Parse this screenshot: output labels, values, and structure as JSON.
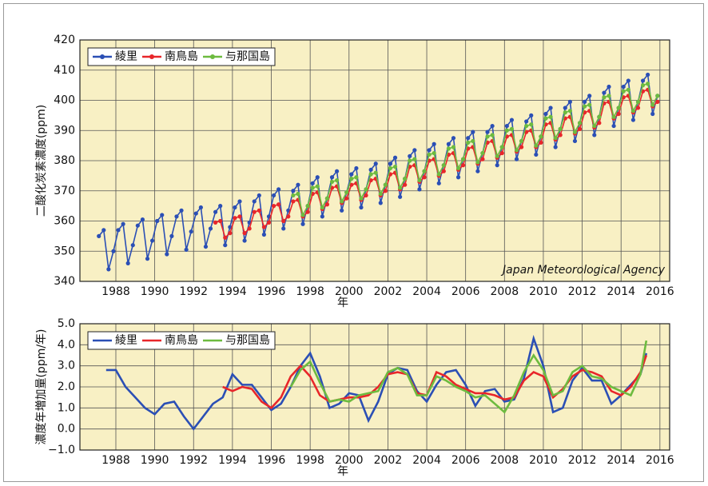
{
  "chart_data": [
    {
      "type": "line",
      "ylabel": "二酸化炭素濃度(ppm)",
      "xlabel": "年",
      "annotation": "Japan Meteorological Agency",
      "xlim": [
        1986.15,
        2016.5
      ],
      "xticks": [
        1988,
        1990,
        1992,
        1994,
        1996,
        1998,
        2000,
        2002,
        2004,
        2006,
        2008,
        2010,
        2012,
        2014,
        2016
      ],
      "ylim": [
        340,
        420
      ],
      "yticks": [
        340,
        350,
        360,
        370,
        380,
        390,
        400,
        410,
        420
      ],
      "grid": true,
      "markers": true,
      "legend": "top-left",
      "series": [
        {
          "name": "綾里",
          "color": "#2b4fb5",
          "x": [
            1987.125,
            1987.375,
            1987.625,
            1987.875,
            1988.125,
            1988.375,
            1988.625,
            1988.875,
            1989.125,
            1989.375,
            1989.625,
            1989.875,
            1990.125,
            1990.375,
            1990.625,
            1990.875,
            1991.125,
            1991.375,
            1991.625,
            1991.875,
            1992.125,
            1992.375,
            1992.625,
            1992.875,
            1993.125,
            1993.375,
            1993.625,
            1993.875,
            1994.125,
            1994.375,
            1994.625,
            1994.875,
            1995.125,
            1995.375,
            1995.625,
            1995.875,
            1996.125,
            1996.375,
            1996.625,
            1996.875,
            1997.125,
            1997.375,
            1997.625,
            1997.875,
            1998.125,
            1998.375,
            1998.625,
            1998.875,
            1999.125,
            1999.375,
            1999.625,
            1999.875,
            2000.125,
            2000.375,
            2000.625,
            2000.875,
            2001.125,
            2001.375,
            2001.625,
            2001.875,
            2002.125,
            2002.375,
            2002.625,
            2002.875,
            2003.125,
            2003.375,
            2003.625,
            2003.875,
            2004.125,
            2004.375,
            2004.625,
            2004.875,
            2005.125,
            2005.375,
            2005.625,
            2005.875,
            2006.125,
            2006.375,
            2006.625,
            2006.875,
            2007.125,
            2007.375,
            2007.625,
            2007.875,
            2008.125,
            2008.375,
            2008.625,
            2008.875,
            2009.125,
            2009.375,
            2009.625,
            2009.875,
            2010.125,
            2010.375,
            2010.625,
            2010.875,
            2011.125,
            2011.375,
            2011.625,
            2011.875,
            2012.125,
            2012.375,
            2012.625,
            2012.875,
            2013.125,
            2013.375,
            2013.625,
            2013.875,
            2014.125,
            2014.375,
            2014.625,
            2014.875,
            2015.125,
            2015.375,
            2015.625,
            2015.875
          ],
          "values": [
            355,
            357,
            344,
            350,
            357,
            359,
            346,
            352,
            358.5,
            360.5,
            347.5,
            353.5,
            360,
            362,
            349,
            355,
            361.5,
            363.5,
            350.5,
            356.5,
            362.5,
            364.5,
            351.5,
            357.5,
            363,
            365,
            352,
            358,
            364.5,
            366.5,
            353.5,
            359.5,
            366.5,
            368.5,
            355.5,
            361.5,
            368.5,
            370.5,
            357.5,
            363.5,
            370,
            372,
            359,
            365,
            372.5,
            374.5,
            361.5,
            367.5,
            374.5,
            376.5,
            363.5,
            369.5,
            375.5,
            377.5,
            364.5,
            370.5,
            377,
            379,
            366,
            372,
            379,
            381,
            368,
            374,
            381.5,
            383.5,
            370.5,
            376.5,
            383.5,
            385.5,
            372.5,
            378.5,
            385.5,
            387.5,
            374.5,
            380.5,
            387.5,
            389.5,
            376.5,
            382.5,
            389.5,
            391.5,
            378.5,
            384.5,
            391.5,
            393.5,
            380.5,
            386.5,
            393,
            395,
            382,
            388,
            395.5,
            397.5,
            384.5,
            390.5,
            397.5,
            399.5,
            386.5,
            392.5,
            399.5,
            401.5,
            388.5,
            394.5,
            402.5,
            404.5,
            391.5,
            397.5,
            404.5,
            406.5,
            393.5,
            399.5,
            406.5,
            408.5,
            395.5,
            401.5
          ]
        },
        {
          "name": "南鳥島",
          "color": "#e8262a",
          "x": [
            1993.125,
            1993.375,
            1993.625,
            1993.875,
            1994.125,
            1994.375,
            1994.625,
            1994.875,
            1995.125,
            1995.375,
            1995.625,
            1995.875,
            1996.125,
            1996.375,
            1996.625,
            1996.875,
            1997.125,
            1997.375,
            1997.625,
            1997.875,
            1998.125,
            1998.375,
            1998.625,
            1998.875,
            1999.125,
            1999.375,
            1999.625,
            1999.875,
            2000.125,
            2000.375,
            2000.625,
            2000.875,
            2001.125,
            2001.375,
            2001.625,
            2001.875,
            2002.125,
            2002.375,
            2002.625,
            2002.875,
            2003.125,
            2003.375,
            2003.625,
            2003.875,
            2004.125,
            2004.375,
            2004.625,
            2004.875,
            2005.125,
            2005.375,
            2005.625,
            2005.875,
            2006.125,
            2006.375,
            2006.625,
            2006.875,
            2007.125,
            2007.375,
            2007.625,
            2007.875,
            2008.125,
            2008.375,
            2008.625,
            2008.875,
            2009.125,
            2009.375,
            2009.625,
            2009.875,
            2010.125,
            2010.375,
            2010.625,
            2010.875,
            2011.125,
            2011.375,
            2011.625,
            2011.875,
            2012.125,
            2012.375,
            2012.625,
            2012.875,
            2013.125,
            2013.375,
            2013.625,
            2013.875,
            2014.125,
            2014.375,
            2014.625,
            2014.875,
            2015.125,
            2015.375,
            2015.625,
            2015.875
          ],
          "values": [
            359.5,
            360,
            354.5,
            356,
            361,
            361.5,
            356,
            357.5,
            363,
            363.5,
            358,
            359.5,
            365,
            365.5,
            360,
            361.5,
            366.5,
            367,
            361.5,
            363,
            369,
            369.5,
            364,
            365.5,
            371,
            371.5,
            366,
            367.5,
            372,
            372.5,
            367,
            368.5,
            373.5,
            374,
            368.5,
            370,
            375.5,
            376,
            370.5,
            372,
            378,
            378.5,
            373,
            374.5,
            380,
            380.5,
            375,
            376.5,
            382,
            382.5,
            377,
            378.5,
            384,
            384.5,
            379,
            380.5,
            386,
            386.5,
            381,
            382.5,
            388,
            388.5,
            383,
            384.5,
            389.5,
            390,
            384.5,
            386,
            392,
            392.5,
            387,
            388.5,
            394,
            394.5,
            389,
            390.5,
            396,
            396.5,
            391,
            392.5,
            399,
            399.5,
            394,
            395.5,
            401,
            401.5,
            396,
            397.5,
            403,
            403.5,
            398,
            399.5
          ]
        },
        {
          "name": "与那国島",
          "color": "#6dbb3f",
          "x": [
            1997.125,
            1997.375,
            1997.625,
            1997.875,
            1998.125,
            1998.375,
            1998.625,
            1998.875,
            1999.125,
            1999.375,
            1999.625,
            1999.875,
            2000.125,
            2000.375,
            2000.625,
            2000.875,
            2001.125,
            2001.375,
            2001.625,
            2001.875,
            2002.125,
            2002.375,
            2002.625,
            2002.875,
            2003.125,
            2003.375,
            2003.625,
            2003.875,
            2004.125,
            2004.375,
            2004.625,
            2004.875,
            2005.125,
            2005.375,
            2005.625,
            2005.875,
            2006.125,
            2006.375,
            2006.625,
            2006.875,
            2007.125,
            2007.375,
            2007.625,
            2007.875,
            2008.125,
            2008.375,
            2008.625,
            2008.875,
            2009.125,
            2009.375,
            2009.625,
            2009.875,
            2010.125,
            2010.375,
            2010.625,
            2010.875,
            2011.125,
            2011.375,
            2011.625,
            2011.875,
            2012.125,
            2012.375,
            2012.625,
            2012.875,
            2013.125,
            2013.375,
            2013.625,
            2013.875,
            2014.125,
            2014.375,
            2014.625,
            2014.875,
            2015.125,
            2015.375,
            2015.625,
            2015.875
          ],
          "values": [
            368.5,
            369,
            362,
            365,
            371,
            371.5,
            364.5,
            367.5,
            373,
            373.5,
            366.5,
            369.5,
            374,
            374.5,
            367.5,
            370.5,
            375.5,
            376,
            369,
            372,
            377.5,
            378,
            371,
            374,
            380,
            380.5,
            373.5,
            376.5,
            382,
            382.5,
            375.5,
            378.5,
            384,
            384.5,
            377.5,
            380.5,
            386,
            386.5,
            379.5,
            382.5,
            388,
            388.5,
            381.5,
            384.5,
            390,
            390.5,
            383.5,
            386.5,
            391.5,
            392,
            385,
            388,
            394,
            394.5,
            387.5,
            390.5,
            396,
            396.5,
            389.5,
            392.5,
            398,
            398.5,
            391.5,
            394.5,
            401,
            401.5,
            394.5,
            397.5,
            403,
            403.5,
            396.5,
            399.5,
            405,
            405.5,
            398.5,
            401.5
          ]
        }
      ]
    },
    {
      "type": "line",
      "ylabel": "濃度年増加量(ppm/年)",
      "xlabel": "年",
      "xlim": [
        1986.15,
        2016.5
      ],
      "xticks": [
        1988,
        1990,
        1992,
        1994,
        1996,
        1998,
        2000,
        2002,
        2004,
        2006,
        2008,
        2010,
        2012,
        2014,
        2016
      ],
      "ylim": [
        -1,
        5
      ],
      "yticks": [
        {
          "value": -1,
          "label": "−1.0"
        },
        {
          "value": 0,
          "label": "0.0"
        },
        {
          "value": 1,
          "label": "1.0"
        },
        {
          "value": 2,
          "label": "2.0"
        },
        {
          "value": 3,
          "label": "3.0"
        },
        {
          "value": 4,
          "label": "4.0"
        },
        {
          "value": 5,
          "label": "5.0"
        }
      ],
      "grid": true,
      "markers": false,
      "legend": "top-left",
      "series": [
        {
          "name": "綾里",
          "color": "#2b4fb5",
          "x": [
            1987.5,
            1988,
            1988.5,
            1989,
            1989.5,
            1990,
            1990.5,
            1991,
            1991.5,
            1992,
            1992.5,
            1993,
            1993.5,
            1994,
            1994.5,
            1995,
            1995.5,
            1996,
            1996.5,
            1997,
            1997.5,
            1998,
            1998.5,
            1999,
            1999.5,
            2000,
            2000.5,
            2001,
            2001.5,
            2002,
            2002.5,
            2003,
            2003.5,
            2004,
            2004.5,
            2005,
            2005.5,
            2006,
            2006.5,
            2007,
            2007.5,
            2008,
            2008.5,
            2009,
            2009.5,
            2010,
            2010.5,
            2011,
            2011.5,
            2012,
            2012.5,
            2013,
            2013.5,
            2014,
            2014.5,
            2015,
            2015.3
          ],
          "values": [
            2.8,
            2.8,
            2.0,
            1.5,
            1.0,
            0.7,
            1.2,
            1.3,
            0.6,
            0.0,
            0.6,
            1.2,
            1.5,
            2.6,
            2.1,
            2.1,
            1.5,
            0.9,
            1.2,
            2.0,
            3.0,
            3.6,
            2.5,
            1.0,
            1.2,
            1.7,
            1.6,
            0.4,
            1.3,
            2.6,
            2.9,
            2.8,
            1.8,
            1.3,
            2.1,
            2.7,
            2.8,
            2.1,
            1.1,
            1.8,
            1.9,
            1.3,
            1.4,
            2.4,
            4.3,
            3.0,
            0.8,
            1.0,
            2.3,
            2.9,
            2.3,
            2.3,
            1.2,
            1.6,
            2.1,
            2.6,
            3.6
          ]
        },
        {
          "name": "南鳥島",
          "color": "#e8262a",
          "x": [
            1993.5,
            1994,
            1994.5,
            1995,
            1995.5,
            1996,
            1996.5,
            1997,
            1997.5,
            1998,
            1998.5,
            1999,
            1999.5,
            2000,
            2000.5,
            2001,
            2001.5,
            2002,
            2002.5,
            2003,
            2003.5,
            2004,
            2004.5,
            2005,
            2005.5,
            2006,
            2006.5,
            2007,
            2007.5,
            2008,
            2008.5,
            2009,
            2009.5,
            2010,
            2010.5,
            2011,
            2011.5,
            2012,
            2012.5,
            2013,
            2013.5,
            2014,
            2014.5,
            2015,
            2015.3
          ],
          "values": [
            2.0,
            1.8,
            2.0,
            1.9,
            1.3,
            1.0,
            1.5,
            2.5,
            3.0,
            2.5,
            1.6,
            1.3,
            1.4,
            1.5,
            1.5,
            1.6,
            2.0,
            2.6,
            2.7,
            2.6,
            1.7,
            1.6,
            2.7,
            2.5,
            2.1,
            1.9,
            1.7,
            1.7,
            1.6,
            1.4,
            1.5,
            2.3,
            2.7,
            2.5,
            1.5,
            1.9,
            2.5,
            2.8,
            2.7,
            2.5,
            1.8,
            1.6,
            2.0,
            2.7,
            3.5
          ]
        },
        {
          "name": "与那国島",
          "color": "#6dbb3f",
          "x": [
            1997,
            1997.5,
            1998,
            1998.5,
            1999,
            1999.5,
            2000,
            2000.5,
            2001,
            2001.5,
            2002,
            2002.5,
            2003,
            2003.5,
            2004,
            2004.5,
            2005,
            2005.5,
            2006,
            2006.5,
            2007,
            2007.5,
            2008,
            2008.5,
            2009,
            2009.5,
            2010,
            2010.5,
            2011,
            2011.5,
            2012,
            2012.5,
            2013,
            2013.5,
            2014,
            2014.5,
            2015,
            2015.3
          ],
          "values": [
            2.0,
            2.8,
            3.2,
            2.2,
            1.3,
            1.4,
            1.3,
            1.6,
            1.7,
            1.8,
            2.7,
            2.9,
            2.6,
            1.6,
            1.6,
            2.5,
            2.3,
            2.0,
            1.8,
            1.5,
            1.6,
            1.2,
            0.8,
            1.6,
            2.7,
            3.5,
            2.8,
            1.6,
            1.8,
            2.7,
            3.0,
            2.5,
            2.4,
            2.0,
            1.8,
            1.6,
            2.6,
            4.2
          ]
        }
      ]
    }
  ]
}
